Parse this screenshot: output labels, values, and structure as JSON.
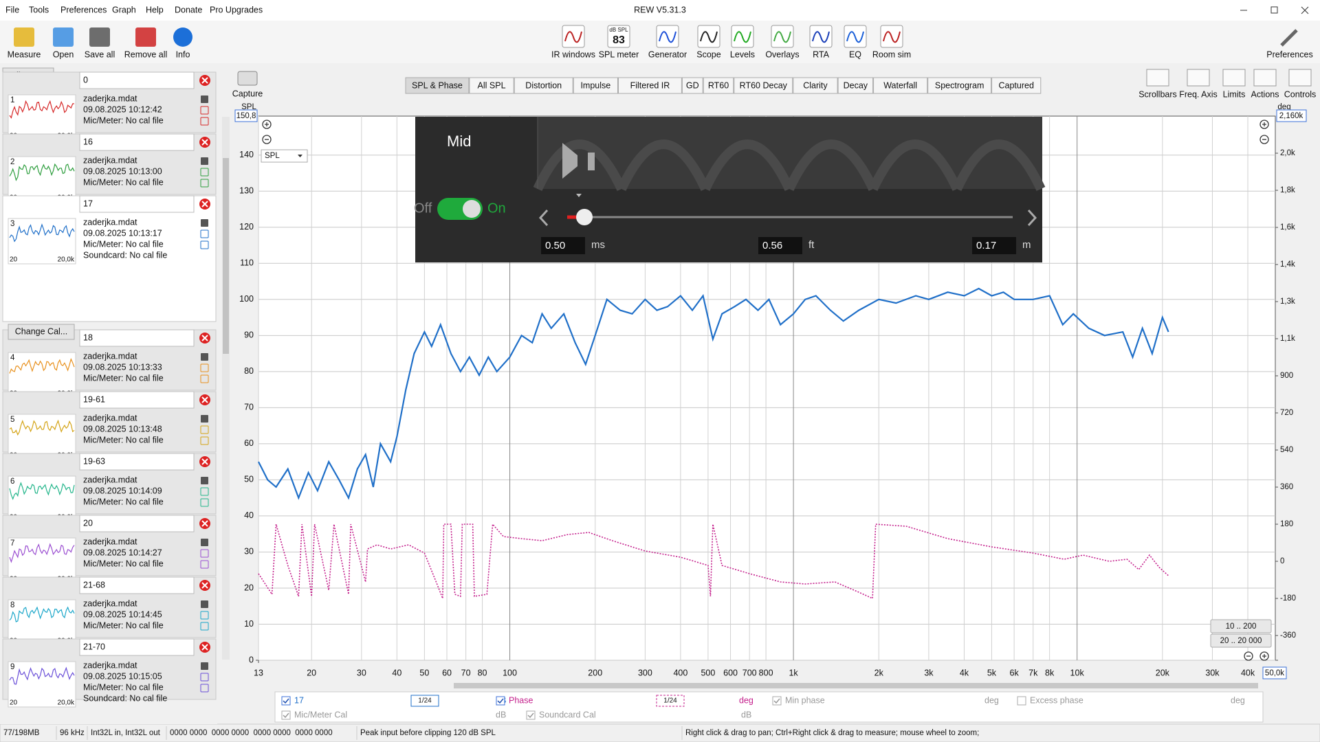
{
  "window": {
    "title": "REW V5.31.3"
  },
  "menu": [
    "File",
    "Tools",
    "Preferences",
    "Graph",
    "Help",
    "Donate",
    "Pro Upgrades"
  ],
  "toolbar": {
    "left": [
      "Measure",
      "Open",
      "Save all",
      "Remove all",
      "Info"
    ],
    "center": [
      "IR windows",
      "SPL meter",
      "Generator",
      "Scope",
      "Levels",
      "Overlays",
      "RTA",
      "EQ",
      "Room sim"
    ],
    "spl_meter_icon": {
      "unit": "dB SPL",
      "reading": "83"
    },
    "right": [
      "Preferences"
    ]
  },
  "capture": "Capture",
  "tabs": [
    "SPL & Phase",
    "All SPL",
    "Distortion",
    "Impulse",
    "Filtered IR",
    "GD",
    "RT60",
    "RT60 Decay",
    "Clarity",
    "Decay",
    "Waterfall",
    "Spectrogram",
    "Captured"
  ],
  "active_tab": 0,
  "graph_controls": [
    "Scrollbars",
    "Freq. Axis",
    "Limits",
    "Actions",
    "Controls"
  ],
  "sidebar": {
    "collapse": "Collapse",
    "change_cal": "Change Cal...",
    "thumb_axis": [
      "20",
      "20,0k"
    ],
    "measurements": [
      {
        "number": "1",
        "name": "0",
        "file": "zaderjka.mdat",
        "date": "09.08.2025 10:12:42",
        "mic": "Mic/Meter: No cal file",
        "color": "#d62828"
      },
      {
        "number": "2",
        "name": "16",
        "file": "zaderjka.mdat",
        "date": "09.08.2025 10:13:00",
        "mic": "Mic/Meter: No cal file",
        "color": "#2e9e3e"
      },
      {
        "number": "3",
        "name": "17",
        "file": "zaderjka.mdat",
        "date": "09.08.2025 10:13:17",
        "mic": "Mic/Meter: No cal file",
        "soundcard": "Soundcard: No cal file",
        "color": "#1f6fc8"
      },
      {
        "number": "4",
        "name": "18",
        "file": "zaderjka.mdat",
        "date": "09.08.2025 10:13:33",
        "mic": "Mic/Meter: No cal file",
        "color": "#e8901c"
      },
      {
        "number": "5",
        "name": "19-61",
        "file": "zaderjka.mdat",
        "date": "09.08.2025 10:13:48",
        "mic": "Mic/Meter: No cal file",
        "color": "#d4a417"
      },
      {
        "number": "6",
        "name": "19-63",
        "file": "zaderjka.mdat",
        "date": "09.08.2025 10:14:09",
        "mic": "Mic/Meter: No cal file",
        "color": "#22b58a"
      },
      {
        "number": "7",
        "name": "20",
        "file": "zaderjka.mdat",
        "date": "09.08.2025 10:14:27",
        "mic": "Mic/Meter: No cal file",
        "color": "#9b4fd1"
      },
      {
        "number": "8",
        "name": "21-68",
        "file": "zaderjka.mdat",
        "date": "09.08.2025 10:14:45",
        "mic": "Mic/Meter: No cal file",
        "color": "#1aa6c9"
      },
      {
        "number": "9",
        "name": "21-70",
        "file": "zaderjka.mdat",
        "date": "09.08.2025 10:15:05",
        "mic": "Mic/Meter: No cal file",
        "soundcard": "Soundcard: No cal file",
        "color": "#6a4fd8"
      }
    ]
  },
  "graph": {
    "y_axis_label": "SPL",
    "y2_axis_label": "deg",
    "ylim_label": "150,8",
    "y2lim_label": "2,160k",
    "xlim_label": "50,0k",
    "dropdown": "SPL",
    "range_buttons": [
      "10 .. 200",
      "20 .. 20 000"
    ],
    "log_x": true,
    "grid": true,
    "xlim": [
      13,
      50000
    ],
    "ylim": [
      0,
      150.8
    ],
    "y2lim": [
      -480,
      2160
    ],
    "xticks": [
      13,
      20,
      30,
      40,
      50,
      60,
      70,
      80,
      100,
      200,
      300,
      400,
      500,
      600,
      700,
      800,
      {
        "value": 1000,
        "label": "1k"
      },
      {
        "value": 2000,
        "label": "2k"
      },
      {
        "value": 3000,
        "label": "3k"
      },
      {
        "value": 4000,
        "label": "4k"
      },
      {
        "value": 5000,
        "label": "5k"
      },
      {
        "value": 6000,
        "label": "6k"
      },
      {
        "value": 7000,
        "label": "7k"
      },
      {
        "value": 8000,
        "label": "8k"
      },
      {
        "value": 10000,
        "label": "10k"
      },
      {
        "value": 20000,
        "label": "20k"
      },
      {
        "value": 30000,
        "label": "30k"
      },
      {
        "value": 40000,
        "label": "40k"
      }
    ],
    "yticks": [
      0,
      10,
      20,
      30,
      40,
      50,
      60,
      70,
      80,
      90,
      100,
      110,
      120,
      130,
      140
    ],
    "y2ticks": [
      -360,
      -180,
      0,
      180,
      360,
      540,
      720,
      900,
      {
        "value": 1080,
        "label": "1,1k"
      },
      {
        "value": 1260,
        "label": "1,3k"
      },
      {
        "value": 1440,
        "label": "1,4k"
      },
      {
        "value": 1620,
        "label": "1,6k"
      },
      {
        "value": 1800,
        "label": "1,8k"
      },
      {
        "value": 1980,
        "label": "2,0k"
      }
    ],
    "series": [
      {
        "name": "17",
        "color": "#1f6fc8",
        "x": [
          13,
          14,
          15,
          16.5,
          18,
          19.5,
          21,
          23,
          25,
          27,
          29,
          31,
          33,
          35,
          38,
          40,
          43,
          46,
          50,
          53,
          57,
          62,
          67,
          72,
          78,
          84,
          90,
          100,
          110,
          120,
          130,
          140,
          155,
          170,
          185,
          200,
          220,
          245,
          270,
          300,
          330,
          360,
          400,
          440,
          480,
          520,
          560,
          620,
          680,
          750,
          820,
          900,
          1000,
          1100,
          1200,
          1350,
          1500,
          1700,
          2000,
          2300,
          2700,
          3000,
          3500,
          4000,
          4500,
          5000,
          5500,
          6000,
          7000,
          8000,
          8900,
          9700,
          11000,
          12500,
          14500,
          15700,
          17000,
          18400,
          20000,
          21000
        ],
        "values": [
          55,
          50,
          48,
          53,
          45,
          52,
          47,
          55,
          50,
          45,
          53,
          57,
          48,
          60,
          55,
          62,
          75,
          85,
          91,
          87,
          93,
          85,
          80,
          84,
          79,
          84,
          80,
          84,
          90,
          88,
          96,
          92,
          96,
          88,
          82,
          90,
          100,
          97,
          96,
          100,
          97,
          98,
          101,
          97,
          101,
          89,
          96,
          98,
          100,
          97,
          100,
          93,
          96,
          100,
          101,
          97,
          94,
          97,
          100,
          99,
          101,
          100,
          102,
          101,
          103,
          101,
          102,
          100,
          100,
          101,
          93,
          96,
          92,
          90,
          91,
          84,
          92,
          85,
          95,
          91
        ]
      },
      {
        "name": "Phase",
        "color": "#c4208c",
        "axis": "y2",
        "x": [
          13,
          14.5,
          15,
          16.5,
          18,
          18.5,
          20,
          20.5,
          23,
          24,
          27,
          27.5,
          31,
          31.5,
          34,
          38,
          44,
          50,
          55,
          58,
          58.5,
          62,
          64,
          67,
          68,
          74,
          75,
          83,
          87,
          95,
          110,
          130,
          160,
          190,
          230,
          300,
          400,
          500,
          510,
          520,
          560,
          700,
          900,
          1100,
          1400,
          1700,
          1900,
          1950,
          2500,
          3500,
          5000,
          7000,
          9000,
          10500,
          13000,
          15000,
          16500,
          18000,
          19500,
          21000
        ],
        "values": [
          -60,
          -160,
          180,
          -20,
          -170,
          180,
          -170,
          180,
          -140,
          180,
          -160,
          180,
          -100,
          60,
          80,
          60,
          80,
          40,
          -100,
          -180,
          180,
          180,
          -160,
          -170,
          180,
          180,
          -170,
          -160,
          180,
          120,
          110,
          100,
          130,
          140,
          100,
          50,
          20,
          -20,
          -170,
          180,
          -20,
          -60,
          -100,
          -110,
          -100,
          -150,
          -180,
          180,
          170,
          110,
          70,
          40,
          10,
          30,
          0,
          10,
          -40,
          30,
          -30,
          -70
        ]
      }
    ]
  },
  "overlay": {
    "title": "Mid",
    "off": "Off",
    "on": "On",
    "fields": [
      {
        "value": "0.50",
        "unit": "ms"
      },
      {
        "value": "0.56",
        "unit": "ft"
      },
      {
        "value": "0.17",
        "unit": "m"
      }
    ]
  },
  "legend": {
    "rows": [
      [
        {
          "label": "17",
          "checked": true,
          "smoothing": "1/24",
          "unit": "dB"
        },
        {
          "label": "Phase",
          "checked": true,
          "smoothing": "1/24",
          "unit": "deg"
        },
        {
          "label": "Min phase",
          "checked": true,
          "unit": "deg"
        },
        {
          "label": "Excess phase",
          "checked": false,
          "unit": "deg"
        }
      ],
      [
        {
          "label": "Mic/Meter Cal",
          "checked": true,
          "unit": "dB"
        },
        {
          "label": "Soundcard Cal",
          "checked": true,
          "unit": "dB"
        }
      ]
    ]
  },
  "status": [
    "77/198MB",
    "96 kHz",
    "Int32L in, Int32L out",
    "0000 0000  0000 0000  0000 0000  0000 0000",
    "Peak input before clipping 120 dB SPL",
    "Right click & drag to pan; Ctrl+Right click & drag to measure; mouse wheel to zoom;"
  ]
}
